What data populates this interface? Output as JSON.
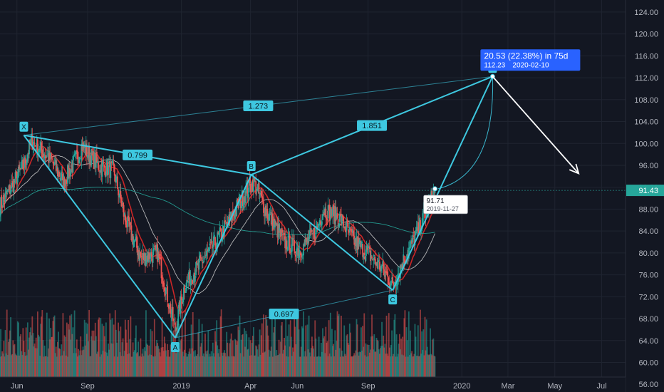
{
  "theme": {
    "background": "#131722",
    "grid": "#1f2430",
    "axis_text": "#b2b5be",
    "pattern": "#3ec8e0",
    "up": "#26a69a",
    "down": "#ef5350",
    "ma_fast": "#e02828",
    "ma_slow": "#c8c8c8",
    "ma_long": "#26a69a",
    "projection_box": "#2962ff",
    "current_price_badge": "#26a69a",
    "arrow": "#ffffff"
  },
  "chart_data": {
    "type": "candlestick",
    "y_axis": {
      "ticks": [
        56,
        60,
        64,
        68,
        72,
        76,
        80,
        84,
        88,
        92,
        96,
        100,
        104,
        108,
        112,
        116,
        120,
        124
      ],
      "tick_labels": [
        "56.00",
        "60.00",
        "64.00",
        "68.00",
        "72.00",
        "76.00",
        "80.00",
        "84.00",
        "88.00",
        "92.00",
        "96.00",
        "100.00",
        "104.00",
        "108.00",
        "112.00",
        "116.00",
        "120.00",
        "124.00"
      ],
      "ylim": [
        54.6,
        126.2
      ],
      "position": "right"
    },
    "x_axis": {
      "tick_labels": [
        "Jun",
        "Sep",
        "2019",
        "Apr",
        "Jun",
        "Sep",
        "2020",
        "Mar",
        "May",
        "Jul"
      ],
      "tick_dates": [
        "2018-06-01",
        "2018-09-01",
        "2019-01-01",
        "2019-04-01",
        "2019-06-01",
        "2019-09-01",
        "2020-01-01",
        "2020-03-01",
        "2020-05-01",
        "2020-07-01"
      ],
      "range": [
        "2018-05-10",
        "2020-08-01"
      ]
    },
    "grid": true,
    "price_anchors": [
      {
        "date": "2018-05-10",
        "close": 88.5
      },
      {
        "date": "2018-06-10",
        "close": 96
      },
      {
        "date": "2018-06-20",
        "close": 100.5
      },
      {
        "date": "2018-07-15",
        "close": 97
      },
      {
        "date": "2018-08-01",
        "close": 93
      },
      {
        "date": "2018-08-25",
        "close": 99.5
      },
      {
        "date": "2018-09-15",
        "close": 96
      },
      {
        "date": "2018-10-05",
        "close": 95
      },
      {
        "date": "2018-10-20",
        "close": 86
      },
      {
        "date": "2018-11-10",
        "close": 79
      },
      {
        "date": "2018-12-01",
        "close": 80
      },
      {
        "date": "2018-12-24",
        "close": 66
      },
      {
        "date": "2019-01-05",
        "close": 74
      },
      {
        "date": "2019-02-05",
        "close": 80
      },
      {
        "date": "2019-03-01",
        "close": 85
      },
      {
        "date": "2019-03-25",
        "close": 91
      },
      {
        "date": "2019-04-05",
        "close": 93
      },
      {
        "date": "2019-04-20",
        "close": 88
      },
      {
        "date": "2019-05-15",
        "close": 82
      },
      {
        "date": "2019-06-05",
        "close": 80.5
      },
      {
        "date": "2019-06-25",
        "close": 84
      },
      {
        "date": "2019-07-05",
        "close": 88
      },
      {
        "date": "2019-07-25",
        "close": 86.5
      },
      {
        "date": "2019-08-15",
        "close": 82
      },
      {
        "date": "2019-09-01",
        "close": 80
      },
      {
        "date": "2019-09-20",
        "close": 77
      },
      {
        "date": "2019-10-03",
        "close": 74
      },
      {
        "date": "2019-10-15",
        "close": 78
      },
      {
        "date": "2019-11-05",
        "close": 84
      },
      {
        "date": "2019-11-27",
        "close": 91.43
      }
    ],
    "moving_averages": [
      {
        "period": 20,
        "color": "#e02828"
      },
      {
        "period": 50,
        "color": "#c8c8c8"
      },
      {
        "period": 200,
        "color": "#26a69a"
      }
    ],
    "volume": {
      "shown": true,
      "relative_scale": [
        0.3,
        1.0
      ]
    },
    "harmonic_pattern": {
      "points": [
        {
          "label": "X",
          "date": "2018-06-10",
          "price": 101.5
        },
        {
          "label": "A",
          "date": "2018-12-24",
          "price": 64.5
        },
        {
          "label": "B",
          "date": "2019-04-02",
          "price": 94.3
        },
        {
          "label": "C",
          "date": "2019-10-03",
          "price": 73.2
        },
        {
          "label": "D",
          "date": "2020-02-10",
          "price": 112.23
        }
      ],
      "ratios": [
        {
          "label": "0.799",
          "from": "X",
          "to": "B"
        },
        {
          "label": "0.697",
          "from": "A",
          "to": "C"
        },
        {
          "label": "1.851",
          "from": "B",
          "to": "D"
        },
        {
          "label": "1.273",
          "from": "X",
          "to": "D"
        }
      ]
    },
    "projection": {
      "headline": "20.53 (22.38%)  in 75d",
      "price": "112.23",
      "date": "2020-02-10",
      "target_price": 112.23
    },
    "start_marker": {
      "price_label": "91.71",
      "date_label": "2019-11-27",
      "price": 91.71,
      "date": "2019-11-27"
    },
    "current_price": {
      "label": "91.43",
      "value": 91.43
    },
    "arrow": {
      "from_date": "2020-02-10",
      "from_price": 112.23,
      "to_date": "2020-06-01",
      "to_price": 94.5
    }
  }
}
